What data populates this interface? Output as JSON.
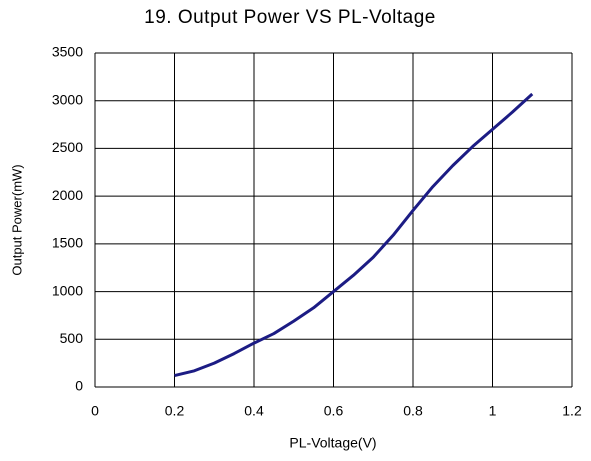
{
  "chart_data": {
    "type": "line",
    "title": "19. Output Power VS PL-Voltage",
    "xlabel": "PL-Voltage(V)",
    "ylabel": "Output Power(mW)",
    "x": [
      0.2,
      0.25,
      0.3,
      0.35,
      0.4,
      0.45,
      0.5,
      0.55,
      0.6,
      0.65,
      0.7,
      0.75,
      0.8,
      0.85,
      0.9,
      0.95,
      1.0,
      1.05,
      1.1
    ],
    "series": [
      {
        "name": "Output Power",
        "color": "#1c1c84",
        "values": [
          120,
          170,
          250,
          350,
          460,
          560,
          690,
          830,
          1000,
          1170,
          1360,
          1590,
          1850,
          2100,
          2320,
          2520,
          2700,
          2880,
          3070
        ]
      }
    ],
    "xlim": [
      0,
      1.2
    ],
    "xticks": [
      0,
      0.2,
      0.4,
      0.6,
      0.8,
      1,
      1.2
    ],
    "ylim": [
      0,
      3500
    ],
    "yticks": [
      0,
      500,
      1000,
      1500,
      2000,
      2500,
      3000,
      3500
    ],
    "grid": true
  }
}
